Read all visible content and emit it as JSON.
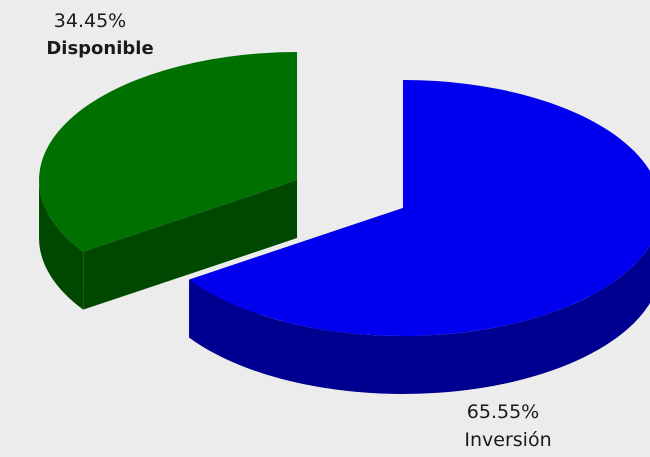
{
  "chart_data": {
    "type": "pie",
    "style": "3d-exploded",
    "slices": [
      {
        "label": "Disponible",
        "percent": 34.45,
        "percent_text": "34.45%",
        "color": "#007000",
        "side_color": "#004800"
      },
      {
        "label": "Inversión",
        "percent": 65.55,
        "percent_text": "65.55%",
        "color": "#0000ee",
        "side_color": "#000090"
      }
    ],
    "legend": "none",
    "background": "#ececec"
  }
}
